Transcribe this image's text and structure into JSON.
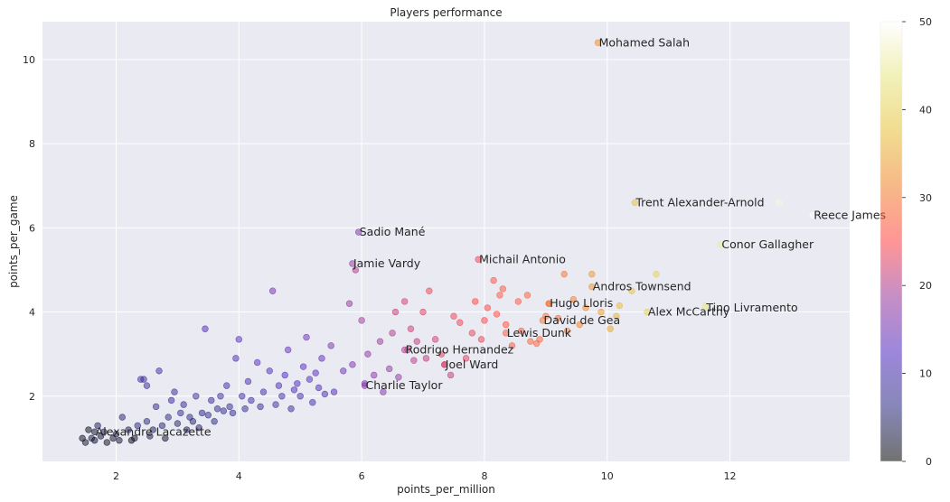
{
  "chart_data": {
    "type": "scatter",
    "title": "Players performance",
    "xlabel": "points_per_million",
    "ylabel": "points_per_game",
    "xlim": [
      0.8,
      13.95
    ],
    "ylim": [
      0.45,
      10.9
    ],
    "xticks": [
      2,
      4,
      6,
      8,
      10,
      12
    ],
    "yticks": [
      2,
      4,
      6,
      8,
      10
    ],
    "grid": true,
    "colormap": "CMRmap",
    "point_alpha": 0.5,
    "colorbar": {
      "min": 0,
      "max": 50,
      "ticks": [
        0,
        10,
        20,
        30,
        40,
        50
      ]
    },
    "points": [
      [
        1.45,
        1.0,
        1
      ],
      [
        1.5,
        0.9,
        2
      ],
      [
        1.55,
        1.2,
        1
      ],
      [
        1.6,
        1.0,
        3
      ],
      [
        1.65,
        0.95,
        2
      ],
      [
        1.7,
        1.3,
        4
      ],
      [
        1.75,
        1.05,
        2
      ],
      [
        1.8,
        1.15,
        3
      ],
      [
        1.85,
        0.9,
        1
      ],
      [
        1.95,
        1.0,
        2
      ],
      [
        2.0,
        1.1,
        3
      ],
      [
        2.05,
        0.95,
        2
      ],
      [
        2.1,
        1.5,
        5
      ],
      [
        2.2,
        1.2,
        4
      ],
      [
        2.25,
        0.95,
        1
      ],
      [
        2.3,
        1.0,
        2
      ],
      [
        2.35,
        1.3,
        6
      ],
      [
        2.4,
        2.4,
        10
      ],
      [
        2.45,
        2.4,
        8
      ],
      [
        2.5,
        1.4,
        6
      ],
      [
        2.5,
        2.25,
        9
      ],
      [
        2.55,
        1.05,
        3
      ],
      [
        2.6,
        1.2,
        4
      ],
      [
        2.65,
        1.75,
        7
      ],
      [
        2.7,
        2.6,
        9
      ],
      [
        2.75,
        1.3,
        5
      ],
      [
        2.8,
        1.0,
        2
      ],
      [
        2.85,
        1.5,
        6
      ],
      [
        2.9,
        1.9,
        8
      ],
      [
        2.95,
        2.1,
        8
      ],
      [
        3.0,
        1.35,
        5
      ],
      [
        3.05,
        1.6,
        7
      ],
      [
        3.1,
        1.8,
        7
      ],
      [
        3.15,
        1.2,
        4
      ],
      [
        3.2,
        1.5,
        6
      ],
      [
        3.25,
        1.4,
        5
      ],
      [
        3.3,
        2.0,
        9
      ],
      [
        3.35,
        1.25,
        5
      ],
      [
        3.4,
        1.6,
        6
      ],
      [
        3.45,
        3.6,
        12
      ],
      [
        3.5,
        1.55,
        7
      ],
      [
        3.55,
        1.9,
        8
      ],
      [
        3.6,
        1.4,
        6
      ],
      [
        3.65,
        1.7,
        7
      ],
      [
        3.7,
        2.0,
        9
      ],
      [
        3.75,
        1.65,
        7
      ],
      [
        3.8,
        2.25,
        10
      ],
      [
        3.85,
        1.75,
        8
      ],
      [
        3.9,
        1.6,
        7
      ],
      [
        3.95,
        2.9,
        12
      ],
      [
        4.0,
        3.35,
        13
      ],
      [
        4.05,
        2.0,
        9
      ],
      [
        4.1,
        1.7,
        8
      ],
      [
        4.15,
        2.35,
        11
      ],
      [
        4.2,
        1.9,
        9
      ],
      [
        4.3,
        2.8,
        13
      ],
      [
        4.35,
        1.75,
        8
      ],
      [
        4.4,
        2.1,
        10
      ],
      [
        4.5,
        2.6,
        12
      ],
      [
        4.55,
        4.5,
        15
      ],
      [
        4.6,
        1.8,
        9
      ],
      [
        4.65,
        2.25,
        11
      ],
      [
        4.7,
        2.0,
        10
      ],
      [
        4.75,
        2.5,
        12
      ],
      [
        4.8,
        3.1,
        14
      ],
      [
        4.85,
        1.7,
        8
      ],
      [
        4.9,
        2.15,
        11
      ],
      [
        4.95,
        2.3,
        12
      ],
      [
        5.0,
        2.0,
        10
      ],
      [
        5.05,
        2.7,
        13
      ],
      [
        5.1,
        3.4,
        15
      ],
      [
        5.15,
        2.4,
        12
      ],
      [
        5.2,
        1.85,
        10
      ],
      [
        5.25,
        2.55,
        13
      ],
      [
        5.3,
        2.2,
        12
      ],
      [
        5.35,
        2.9,
        14
      ],
      [
        5.4,
        2.05,
        11
      ],
      [
        5.5,
        3.2,
        16
      ],
      [
        5.55,
        2.1,
        12
      ],
      [
        5.7,
        2.6,
        15
      ],
      [
        5.8,
        4.2,
        18
      ],
      [
        5.85,
        2.75,
        16
      ],
      [
        5.9,
        5.0,
        20
      ],
      [
        6.0,
        3.8,
        19
      ],
      [
        6.05,
        2.3,
        16
      ],
      [
        6.1,
        3.0,
        18
      ],
      [
        6.2,
        2.5,
        17
      ],
      [
        6.3,
        3.3,
        19
      ],
      [
        6.35,
        2.1,
        17
      ],
      [
        6.45,
        2.65,
        18
      ],
      [
        6.5,
        3.5,
        20
      ],
      [
        6.55,
        4.0,
        21
      ],
      [
        6.6,
        2.45,
        18
      ],
      [
        6.7,
        4.25,
        22
      ],
      [
        6.75,
        3.1,
        21
      ],
      [
        6.8,
        3.6,
        22
      ],
      [
        6.85,
        2.85,
        20
      ],
      [
        6.9,
        3.3,
        21
      ],
      [
        7.0,
        4.0,
        23
      ],
      [
        7.05,
        2.9,
        21
      ],
      [
        7.1,
        4.5,
        24
      ],
      [
        7.2,
        3.35,
        22
      ],
      [
        7.3,
        3.0,
        23
      ],
      [
        7.35,
        2.75,
        22
      ],
      [
        7.45,
        2.5,
        21
      ],
      [
        7.5,
        3.9,
        24
      ],
      [
        7.6,
        3.75,
        24
      ],
      [
        7.7,
        2.9,
        23
      ],
      [
        7.8,
        3.5,
        24
      ],
      [
        7.85,
        4.25,
        25
      ],
      [
        7.95,
        3.35,
        24
      ],
      [
        8.0,
        3.8,
        25
      ],
      [
        8.05,
        4.1,
        25
      ],
      [
        8.15,
        4.75,
        26
      ],
      [
        8.2,
        3.95,
        26
      ],
      [
        8.25,
        4.4,
        27
      ],
      [
        8.3,
        4.55,
        27
      ],
      [
        8.35,
        3.7,
        26
      ],
      [
        8.45,
        3.2,
        27
      ],
      [
        8.55,
        4.25,
        27
      ],
      [
        8.6,
        3.55,
        27
      ],
      [
        8.7,
        4.4,
        28
      ],
      [
        8.75,
        3.3,
        28
      ],
      [
        8.85,
        3.25,
        28
      ],
      [
        8.9,
        3.35,
        28
      ],
      [
        9.0,
        3.9,
        29
      ],
      [
        9.05,
        4.2,
        29
      ],
      [
        9.2,
        3.85,
        29
      ],
      [
        9.3,
        4.9,
        30
      ],
      [
        9.35,
        3.55,
        30
      ],
      [
        9.45,
        4.3,
        31
      ],
      [
        9.55,
        3.7,
        31
      ],
      [
        9.65,
        4.1,
        32
      ],
      [
        9.75,
        4.9,
        33
      ],
      [
        9.9,
        4.0,
        34
      ],
      [
        10.05,
        3.6,
        35
      ],
      [
        10.15,
        3.9,
        36
      ],
      [
        10.2,
        4.15,
        37
      ],
      [
        10.4,
        4.5,
        38
      ],
      [
        10.8,
        4.9,
        40
      ],
      [
        11.6,
        4.15,
        44
      ],
      [
        12.8,
        6.6,
        48
      ]
    ],
    "annotations": [
      {
        "label": "Mohamed Salah",
        "x": 9.85,
        "y": 10.4,
        "c": 32
      },
      {
        "label": "Trent Alexander-Arnold",
        "x": 10.45,
        "y": 6.6,
        "c": 38
      },
      {
        "label": "Reece James",
        "x": 13.35,
        "y": 6.3,
        "c": 50
      },
      {
        "label": "Conor Gallagher",
        "x": 11.85,
        "y": 5.6,
        "c": 45
      },
      {
        "label": "Sadio Mané",
        "x": 5.95,
        "y": 5.9,
        "c": 16
      },
      {
        "label": "Jamie Vardy",
        "x": 5.85,
        "y": 5.15,
        "c": 18
      },
      {
        "label": "Michail Antonio",
        "x": 7.9,
        "y": 5.25,
        "c": 24
      },
      {
        "label": "Andros Townsend",
        "x": 9.75,
        "y": 4.6,
        "c": 33
      },
      {
        "label": "Hugo Lloris",
        "x": 9.05,
        "y": 4.2,
        "c": 30
      },
      {
        "label": "Tino Livramento",
        "x": 11.6,
        "y": 4.1,
        "c": 45
      },
      {
        "label": "Alex McCarthy",
        "x": 10.65,
        "y": 4.0,
        "c": 40
      },
      {
        "label": "David de Gea",
        "x": 8.95,
        "y": 3.8,
        "c": 30
      },
      {
        "label": "Lewis Dunk",
        "x": 8.35,
        "y": 3.5,
        "c": 27
      },
      {
        "label": "Rodrigo Hernandez",
        "x": 6.7,
        "y": 3.1,
        "c": 20
      },
      {
        "label": "Joel Ward",
        "x": 7.35,
        "y": 2.75,
        "c": 22
      },
      {
        "label": "Charlie Taylor",
        "x": 6.05,
        "y": 2.25,
        "c": 17
      },
      {
        "label": "Alexandre Lacazette",
        "x": 1.65,
        "y": 1.15,
        "c": 2
      }
    ]
  }
}
